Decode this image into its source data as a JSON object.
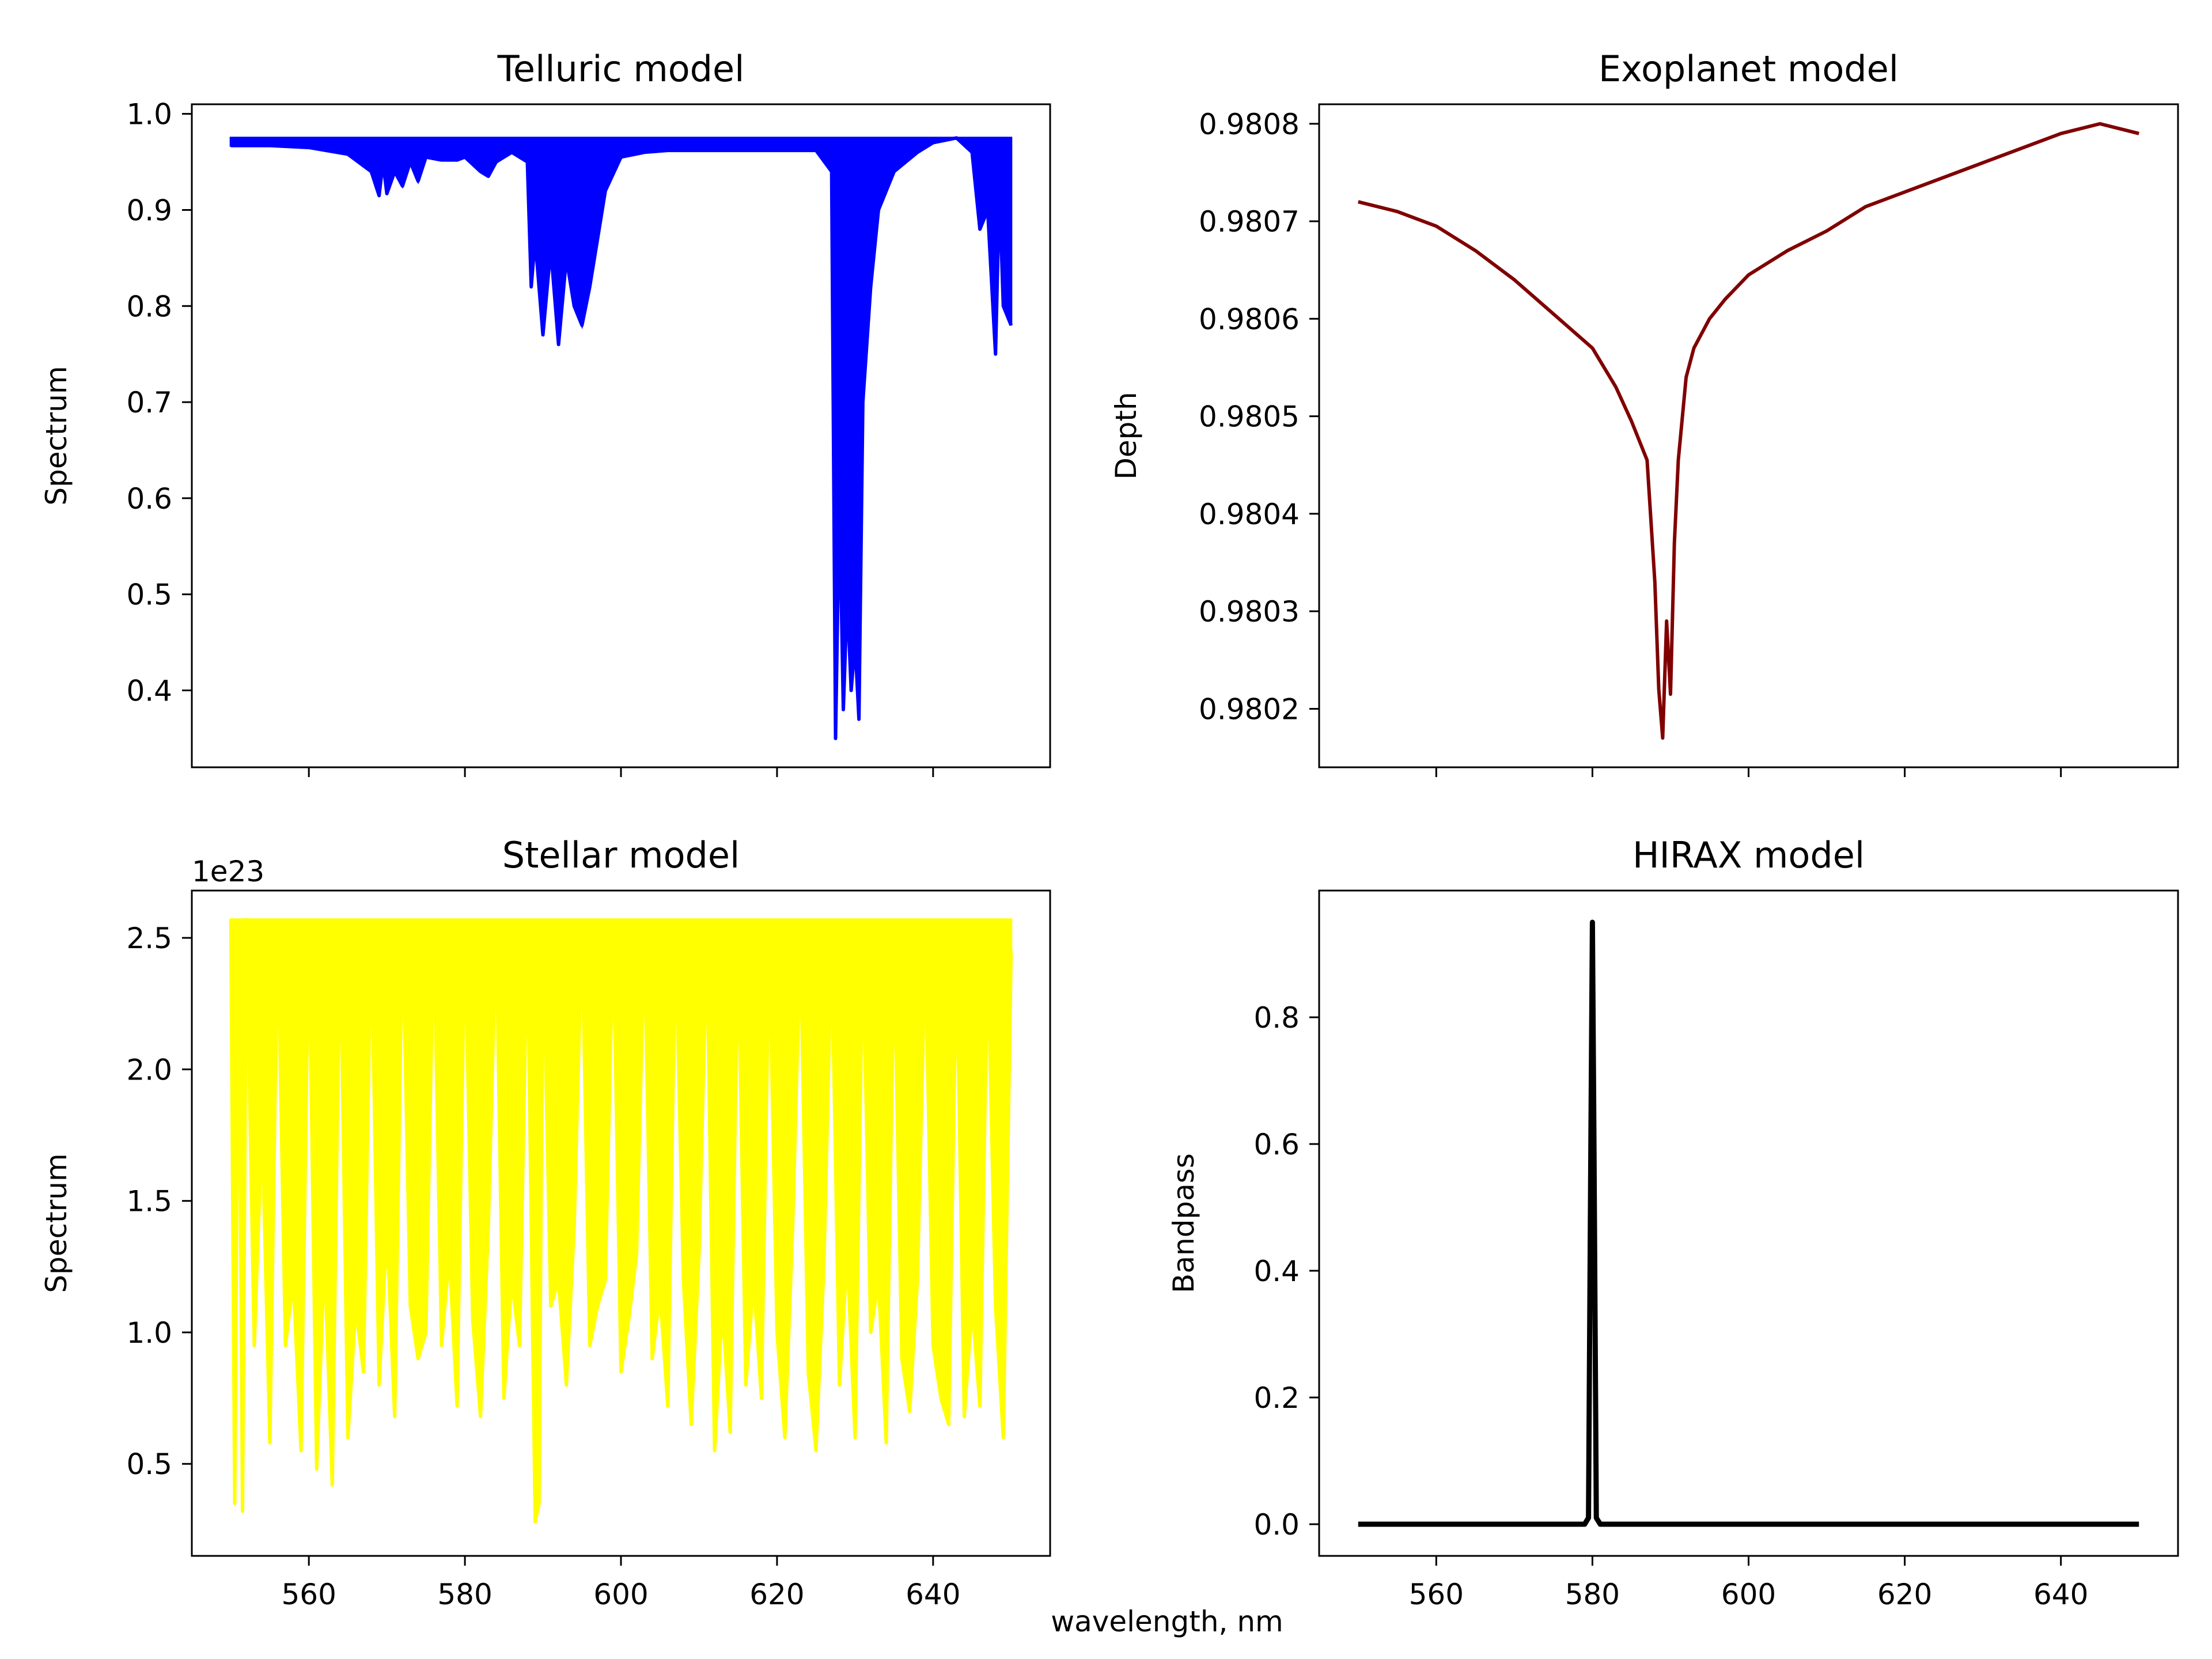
{
  "figure": {
    "shared_xlabel": "wavelength, nm"
  },
  "chart_data": [
    {
      "id": "telluric",
      "type": "line",
      "title": "Telluric model",
      "xlabel": "",
      "ylabel": "Spectrum",
      "color": "#0000ff",
      "xlim": [
        545,
        655
      ],
      "ylim": [
        0.32,
        1.01
      ],
      "xticks": [
        560,
        580,
        600,
        620,
        640
      ],
      "show_xtick_labels": false,
      "yticks": [
        0.4,
        0.5,
        0.6,
        0.7,
        0.8,
        0.9,
        1.0
      ],
      "ytick_labels": [
        "0.4",
        "0.5",
        "0.6",
        "0.7",
        "0.8",
        "0.9",
        "1.0"
      ],
      "offset_text": "",
      "grid": false,
      "x": [
        550,
        555,
        560,
        565,
        568,
        569,
        569.5,
        570,
        571,
        572,
        573,
        574,
        575,
        577,
        579,
        580,
        582,
        583,
        584,
        586,
        588,
        588.5,
        589,
        590,
        591,
        592,
        593,
        594,
        595,
        596,
        597,
        598,
        600,
        603,
        606,
        610,
        615,
        620,
        625,
        627,
        627.5,
        628,
        628.5,
        629,
        629.5,
        630,
        630.5,
        631,
        632,
        633,
        635,
        638,
        640,
        643,
        645,
        646,
        647,
        648,
        648.5,
        649,
        650
      ],
      "y": [
        0.967,
        0.967,
        0.965,
        0.958,
        0.94,
        0.915,
        0.95,
        0.917,
        0.94,
        0.925,
        0.95,
        0.93,
        0.955,
        0.952,
        0.952,
        0.955,
        0.94,
        0.935,
        0.95,
        0.96,
        0.95,
        0.82,
        0.87,
        0.77,
        0.86,
        0.76,
        0.85,
        0.8,
        0.78,
        0.82,
        0.87,
        0.92,
        0.955,
        0.96,
        0.962,
        0.962,
        0.962,
        0.962,
        0.962,
        0.94,
        0.35,
        0.6,
        0.38,
        0.5,
        0.4,
        0.45,
        0.37,
        0.7,
        0.82,
        0.9,
        0.94,
        0.96,
        0.97,
        0.975,
        0.96,
        0.88,
        0.9,
        0.75,
        0.92,
        0.8,
        0.78
      ]
    },
    {
      "id": "exoplanet",
      "type": "line",
      "title": "Exoplanet model",
      "xlabel": "",
      "ylabel": "Depth",
      "color": "#800000",
      "xlim": [
        545,
        655
      ],
      "ylim": [
        0.98014,
        0.98082
      ],
      "xticks": [
        560,
        580,
        600,
        620,
        640
      ],
      "show_xtick_labels": false,
      "yticks": [
        0.9802,
        0.9803,
        0.9804,
        0.9805,
        0.9806,
        0.9807,
        0.9808
      ],
      "ytick_labels": [
        "0.9802",
        "0.9803",
        "0.9804",
        "0.9805",
        "0.9806",
        "0.9807",
        "0.9808"
      ],
      "offset_text": "",
      "grid": false,
      "x": [
        550,
        555,
        560,
        565,
        570,
        575,
        580,
        583,
        585,
        587,
        588,
        588.5,
        589,
        589.5,
        590,
        590.5,
        591,
        592,
        593,
        595,
        597,
        600,
        605,
        610,
        615,
        620,
        625,
        630,
        635,
        640,
        645,
        650
      ],
      "y": [
        0.98072,
        0.98071,
        0.980695,
        0.98067,
        0.98064,
        0.980605,
        0.98057,
        0.98053,
        0.980495,
        0.980455,
        0.98033,
        0.98022,
        0.98017,
        0.98029,
        0.980215,
        0.98037,
        0.980455,
        0.98054,
        0.98057,
        0.9806,
        0.98062,
        0.980645,
        0.98067,
        0.98069,
        0.980715,
        0.98073,
        0.980745,
        0.98076,
        0.980775,
        0.98079,
        0.9808,
        0.98079
      ]
    },
    {
      "id": "stellar",
      "type": "line",
      "title": "Stellar model",
      "xlabel": "",
      "ylabel": "Spectrum",
      "color": "#ffff00",
      "xlim": [
        545,
        655
      ],
      "ylim": [
        0.15,
        2.68
      ],
      "xticks": [
        560,
        580,
        600,
        620,
        640
      ],
      "show_xtick_labels": true,
      "xtick_labels": [
        "560",
        "580",
        "600",
        "620",
        "640"
      ],
      "yticks": [
        0.5,
        1.0,
        1.5,
        2.0,
        2.5
      ],
      "ytick_labels": [
        "0.5",
        "1.0",
        "1.5",
        "2.0",
        "2.5"
      ],
      "offset_text": "1e23",
      "grid": false,
      "x": [
        550,
        550.5,
        551,
        551.5,
        552,
        553,
        554,
        555,
        556,
        557,
        558,
        559,
        560,
        561,
        562,
        563,
        564,
        565,
        566,
        567,
        568,
        569,
        570,
        571,
        572,
        573,
        574,
        575,
        576,
        577,
        578,
        579,
        580,
        581,
        582,
        583,
        584,
        585,
        586,
        587,
        588,
        589,
        589.5,
        590,
        591,
        592,
        593,
        594,
        595,
        596,
        597,
        598,
        599,
        600,
        601,
        602,
        603,
        604,
        605,
        606,
        607,
        608,
        609,
        610,
        611,
        612,
        613,
        614,
        615,
        616,
        617,
        618,
        619,
        620,
        621,
        622,
        623,
        624,
        625,
        626,
        627,
        628,
        629,
        630,
        631,
        632,
        633,
        634,
        635,
        636,
        637,
        638,
        639,
        640,
        641,
        642,
        643,
        644,
        645,
        646,
        647,
        648,
        649,
        650
      ],
      "y": [
        2.57,
        0.35,
        2.56,
        0.32,
        2.57,
        0.95,
        1.8,
        0.58,
        2.56,
        0.95,
        1.2,
        0.55,
        2.56,
        0.48,
        1.3,
        0.42,
        2.56,
        0.6,
        1.1,
        0.85,
        2.56,
        0.8,
        1.4,
        0.68,
        2.56,
        1.1,
        0.9,
        1.0,
        2.56,
        0.95,
        1.3,
        0.72,
        2.55,
        1.05,
        0.68,
        1.4,
        2.55,
        0.75,
        1.2,
        0.95,
        2.55,
        0.28,
        0.35,
        2.54,
        1.1,
        1.2,
        0.8,
        1.4,
        2.54,
        0.95,
        1.1,
        1.2,
        2.53,
        0.85,
        1.05,
        1.3,
        2.52,
        0.9,
        1.15,
        0.72,
        2.52,
        1.2,
        0.65,
        1.3,
        2.51,
        0.55,
        1.1,
        0.62,
        2.51,
        0.8,
        1.2,
        0.75,
        2.5,
        1.0,
        0.6,
        1.4,
        2.5,
        0.85,
        0.55,
        1.25,
        2.49,
        0.8,
        1.3,
        0.6,
        2.49,
        1.0,
        1.2,
        0.58,
        2.48,
        0.9,
        0.7,
        1.2,
        2.47,
        0.95,
        0.75,
        0.65,
        2.47,
        0.68,
        1.1,
        0.72,
        2.46,
        1.1,
        0.6,
        2.45
      ]
    },
    {
      "id": "hirax",
      "type": "line",
      "title": "HIRAX model",
      "xlabel": "",
      "ylabel": "Bandpass",
      "color": "#000000",
      "xlim": [
        545,
        655
      ],
      "ylim": [
        -0.05,
        1.0
      ],
      "xticks": [
        560,
        580,
        600,
        620,
        640
      ],
      "show_xtick_labels": true,
      "xtick_labels": [
        "560",
        "580",
        "600",
        "620",
        "640"
      ],
      "yticks": [
        0.0,
        0.2,
        0.4,
        0.6,
        0.8
      ],
      "ytick_labels": [
        "0.0",
        "0.2",
        "0.4",
        "0.6",
        "0.8"
      ],
      "offset_text": "",
      "grid": false,
      "x": [
        550,
        579,
        579.5,
        579.8,
        580,
        580.2,
        580.5,
        581,
        650
      ],
      "y": [
        0.0,
        0.0,
        0.01,
        0.6,
        0.95,
        0.6,
        0.01,
        0.0,
        0.0
      ]
    }
  ]
}
